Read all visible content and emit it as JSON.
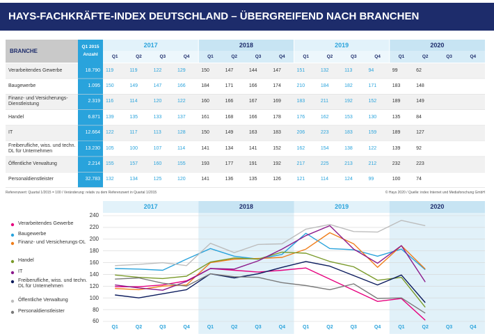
{
  "header": {
    "title": "HAYS-FACHKRÄFTE-INDEX DEUTSCHLAND – ÜBERGREIFEND NACH BRANCHEN"
  },
  "table": {
    "branche_header": "BRANCHE",
    "base_header": [
      "Q1 2015",
      "Anzahl"
    ],
    "years": [
      "2017",
      "2018",
      "2019",
      "2020"
    ],
    "quarters": [
      "Q1",
      "Q2",
      "Q3",
      "Q4"
    ],
    "rows": [
      {
        "name": "Verarbeitendes Gewerbe",
        "base": "18.790",
        "values": [
          119,
          119,
          122,
          129,
          150,
          147,
          144,
          147,
          151,
          132,
          113,
          94,
          99,
          62
        ]
      },
      {
        "name": "Baugewerbe",
        "base": "1.095",
        "values": [
          150,
          149,
          147,
          166,
          184,
          171,
          166,
          174,
          210,
          184,
          182,
          171,
          183,
          148
        ]
      },
      {
        "name": "Finanz- und Versicherungs-Dienstleistung",
        "base": "2.319",
        "values": [
          116,
          114,
          120,
          122,
          160,
          166,
          167,
          169,
          183,
          211,
          192,
          152,
          189,
          149
        ]
      },
      {
        "name": "Handel",
        "base": "6.871",
        "values": [
          139,
          135,
          133,
          137,
          161,
          168,
          166,
          178,
          176,
          162,
          153,
          130,
          135,
          84
        ]
      },
      {
        "name": "IT",
        "base": "12.664",
        "values": [
          122,
          117,
          113,
          128,
          150,
          149,
          163,
          183,
          206,
          223,
          183,
          159,
          189,
          127
        ]
      },
      {
        "name": "Freiberufliche, wiss. und techn. DL für Unternehmen",
        "base": "13.230",
        "values": [
          105,
          100,
          107,
          114,
          141,
          134,
          141,
          152,
          162,
          154,
          138,
          122,
          139,
          92
        ]
      },
      {
        "name": "Öffentliche Verwaltung",
        "base": "2.214",
        "values": [
          155,
          157,
          160,
          155,
          193,
          177,
          191,
          192,
          217,
          225,
          213,
          212,
          232,
          223
        ]
      },
      {
        "name": "Personaldienstleister",
        "base": "32.783",
        "values": [
          132,
          134,
          125,
          120,
          141,
          136,
          135,
          126,
          121,
          114,
          124,
          99,
          100,
          74
        ]
      }
    ]
  },
  "footnotes": {
    "left": "Referenzwert: Quartal 1/2015 = 100 / Veränderung: relativ zu dem Referenzwert in Quartal 1/2015",
    "right": "© Hays 2020 / Quelle: index Internet und Mediaforschung GmbH"
  },
  "chart_data": {
    "type": "line",
    "years": [
      "2017",
      "2018",
      "2019",
      "2020"
    ],
    "categories": [
      "Q1",
      "Q2",
      "Q3",
      "Q4",
      "Q1",
      "Q2",
      "Q3",
      "Q4",
      "Q1",
      "Q2",
      "Q3",
      "Q4",
      "Q1",
      "Q2",
      "Q3",
      "Q4"
    ],
    "ylim": [
      60,
      240
    ],
    "yticks": [
      60,
      80,
      100,
      120,
      140,
      160,
      180,
      200,
      220,
      240
    ],
    "grid": true,
    "series": [
      {
        "name": "Verarbeitendes Gewerbe",
        "color": "#e6007e",
        "values": [
          119,
          119,
          122,
          129,
          150,
          147,
          144,
          147,
          151,
          132,
          113,
          94,
          99,
          62,
          null,
          null
        ]
      },
      {
        "name": "Baugewerbe",
        "color": "#29a3dc",
        "values": [
          150,
          149,
          147,
          166,
          184,
          171,
          166,
          174,
          210,
          184,
          182,
          171,
          183,
          148,
          null,
          null
        ]
      },
      {
        "name": "Finanz- und Versicherungs-DL",
        "color": "#ef7d1a",
        "values": [
          116,
          114,
          120,
          122,
          160,
          166,
          167,
          169,
          183,
          211,
          192,
          152,
          189,
          149,
          null,
          null
        ]
      },
      {
        "name": "Handel",
        "color": "#7a9a2a",
        "values": [
          139,
          135,
          133,
          137,
          161,
          168,
          166,
          178,
          176,
          162,
          153,
          130,
          135,
          84,
          null,
          null
        ]
      },
      {
        "name": "IT",
        "color": "#8b1a8b",
        "values": [
          122,
          117,
          113,
          128,
          150,
          149,
          163,
          183,
          206,
          223,
          183,
          159,
          189,
          127,
          null,
          null
        ]
      },
      {
        "name": "Freiberufliche, wiss. und techn. DL für Unternehmen",
        "color": "#0a1a5c",
        "values": [
          105,
          100,
          107,
          114,
          141,
          134,
          141,
          152,
          162,
          154,
          138,
          122,
          139,
          92,
          null,
          null
        ]
      },
      {
        "name": "Öffentliche Verwaltung",
        "color": "#bdbdbd",
        "values": [
          155,
          157,
          160,
          155,
          193,
          177,
          191,
          192,
          217,
          225,
          213,
          212,
          232,
          223,
          null,
          null
        ]
      },
      {
        "name": "Personaldienstleister",
        "color": "#7a7a7a",
        "values": [
          132,
          134,
          125,
          120,
          141,
          136,
          135,
          126,
          121,
          114,
          124,
          99,
          100,
          74,
          null,
          null
        ]
      }
    ]
  }
}
